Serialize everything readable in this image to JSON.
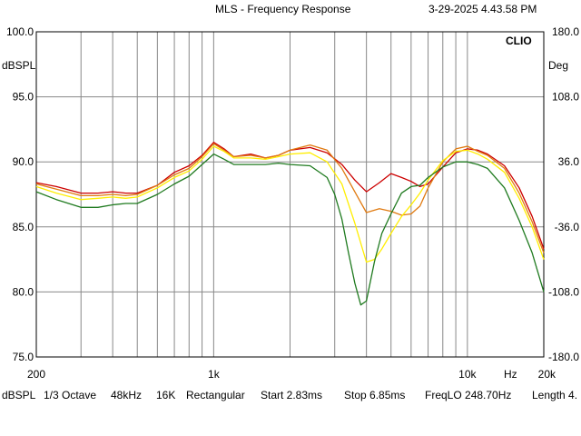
{
  "header": {
    "title": "MLS - Frequency Response",
    "timestamp": "3-29-2025 4.43.58 PM"
  },
  "chart_data": {
    "type": "line",
    "title": "MLS - Frequency Response",
    "brand": "CLIO",
    "x_scale": "log",
    "xlim": [
      200,
      20000
    ],
    "ylim": [
      75,
      100
    ],
    "y2lim": [
      -180,
      180
    ],
    "ylabel": "dBSPL",
    "y2label": "Deg",
    "xunit": "Hz",
    "background": "#ffffff",
    "grid": true,
    "x_ticks": [
      {
        "value": 200,
        "label": "200"
      },
      {
        "value": 1000,
        "label": "1k"
      },
      {
        "value": 10000,
        "label": "10k"
      },
      {
        "value": 20000,
        "label": "20k"
      }
    ],
    "x_gridlines": [
      300,
      400,
      500,
      600,
      700,
      800,
      900,
      1000,
      2000,
      3000,
      4000,
      5000,
      6000,
      7000,
      8000,
      9000,
      10000
    ],
    "y_ticks": [
      "100.0",
      "95.0",
      "90.0",
      "85.0",
      "80.0",
      "75.0"
    ],
    "y_tick_values": [
      100,
      95,
      90,
      85,
      80,
      75
    ],
    "y2_ticks": [
      "180.0",
      "108.0",
      "36.0",
      "-36.0",
      "-108.0",
      "-180.0"
    ],
    "series": [
      {
        "color": "#cc0000",
        "x": [
          200,
          240,
          300,
          350,
          400,
          450,
          500,
          600,
          700,
          800,
          900,
          1000,
          1100,
          1200,
          1400,
          1600,
          1800,
          2000,
          2400,
          2800,
          3200,
          3600,
          4000,
          4500,
          5000,
          5500,
          6000,
          6500,
          7000,
          8000,
          9000,
          10000,
          11000,
          12000,
          14000,
          16000,
          18000,
          20000
        ],
        "y": [
          88.4,
          88.1,
          87.6,
          87.6,
          87.7,
          87.6,
          87.6,
          88.2,
          89.2,
          89.7,
          90.5,
          91.5,
          91.0,
          90.4,
          90.6,
          90.3,
          90.5,
          90.9,
          91.1,
          90.7,
          89.8,
          88.6,
          87.7,
          88.4,
          89.1,
          88.8,
          88.5,
          88.1,
          88.3,
          89.6,
          90.7,
          91.0,
          90.9,
          90.6,
          89.7,
          88.0,
          85.8,
          83.3
        ]
      },
      {
        "color": "#e07a10",
        "x": [
          200,
          240,
          300,
          350,
          400,
          450,
          500,
          600,
          700,
          800,
          900,
          1000,
          1100,
          1200,
          1400,
          1600,
          1800,
          2000,
          2400,
          2800,
          3200,
          3600,
          4000,
          4500,
          5000,
          5500,
          6000,
          6500,
          7000,
          8000,
          9000,
          10000,
          11000,
          12000,
          14000,
          16000,
          18000,
          20000
        ],
        "y": [
          88.3,
          87.9,
          87.4,
          87.4,
          87.5,
          87.4,
          87.5,
          88.2,
          89.0,
          89.5,
          90.4,
          91.4,
          90.9,
          90.4,
          90.5,
          90.3,
          90.5,
          90.9,
          91.3,
          90.9,
          89.5,
          87.7,
          86.1,
          86.4,
          86.2,
          85.9,
          86.0,
          86.6,
          88.0,
          90.0,
          91.0,
          91.2,
          90.8,
          90.5,
          89.5,
          87.6,
          85.4,
          83.0
        ]
      },
      {
        "color": "#ffee00",
        "x": [
          200,
          240,
          300,
          350,
          400,
          450,
          500,
          600,
          700,
          800,
          900,
          1000,
          1100,
          1200,
          1400,
          1600,
          1800,
          2000,
          2400,
          2800,
          3200,
          3600,
          4000,
          4300,
          4600,
          5000,
          5500,
          6000,
          6500,
          7000,
          8000,
          9000,
          10000,
          11000,
          12000,
          14000,
          16000,
          18000,
          20000
        ],
        "y": [
          88.1,
          87.6,
          87.1,
          87.2,
          87.3,
          87.2,
          87.3,
          88.0,
          88.8,
          89.3,
          90.2,
          91.2,
          90.8,
          90.3,
          90.3,
          90.2,
          90.4,
          90.6,
          90.7,
          90.0,
          88.3,
          85.3,
          82.3,
          82.5,
          83.3,
          84.5,
          85.8,
          86.7,
          87.6,
          88.6,
          90.1,
          90.8,
          90.9,
          90.6,
          90.2,
          89.2,
          87.2,
          85.0,
          82.5
        ]
      },
      {
        "color": "#1f7a1f",
        "x": [
          200,
          240,
          300,
          350,
          400,
          450,
          500,
          600,
          700,
          800,
          900,
          1000,
          1100,
          1200,
          1400,
          1600,
          1800,
          2000,
          2400,
          2800,
          3000,
          3200,
          3400,
          3600,
          3800,
          4000,
          4300,
          4600,
          5000,
          5500,
          6000,
          6500,
          7000,
          8000,
          9000,
          10000,
          11000,
          12000,
          14000,
          16000,
          18000,
          20000
        ],
        "y": [
          87.7,
          87.1,
          86.5,
          86.5,
          86.7,
          86.8,
          86.8,
          87.5,
          88.3,
          88.9,
          89.8,
          90.6,
          90.2,
          89.8,
          89.8,
          89.8,
          89.9,
          89.8,
          89.7,
          88.8,
          87.5,
          85.6,
          83.0,
          80.7,
          79.0,
          79.3,
          82.3,
          84.5,
          86.0,
          87.6,
          88.1,
          88.2,
          88.8,
          89.6,
          90.0,
          90.0,
          89.8,
          89.5,
          88.0,
          85.5,
          83.0,
          80.0
        ]
      }
    ]
  },
  "footer": {
    "unit": "dBSPL",
    "smoothing": "1/3 Octave",
    "sample_rate": "48kHz",
    "size": "16K",
    "window": "Rectangular",
    "start": "Start 2.83ms",
    "stop": "Stop 6.85ms",
    "freq_lo": "FreqLO 248.70Hz",
    "length": "Length 4."
  }
}
